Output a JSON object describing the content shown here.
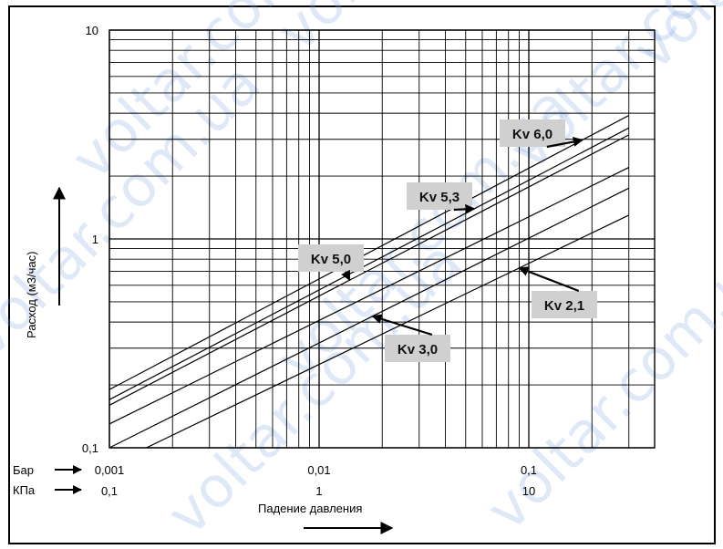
{
  "chart_data": {
    "type": "line",
    "xscale": "log",
    "yscale": "log",
    "xlim": [
      0.001,
      0.3
    ],
    "ylim": [
      0.1,
      10
    ],
    "grid": true,
    "xlabel": "Падение давления",
    "ylabel": "Расход (м3/час)",
    "y_ticks": [
      "10",
      "1",
      "0,1"
    ],
    "x_axes": [
      {
        "unit": "Бар",
        "ticks": [
          "0,001",
          "0,01",
          "0,1"
        ]
      },
      {
        "unit": "КПа",
        "ticks": [
          "0,1",
          "1",
          "10"
        ]
      }
    ],
    "series": [
      {
        "name": "Kv 6,0",
        "x": [
          0.001,
          0.3
        ],
        "y": [
          0.19,
          3.9
        ]
      },
      {
        "name": "Kv 5,3",
        "x": [
          0.001,
          0.3
        ],
        "y": [
          0.17,
          3.4
        ]
      },
      {
        "name": "Kv 5,0",
        "x": [
          0.001,
          0.3
        ],
        "y": [
          0.16,
          3.15
        ]
      },
      {
        "name": "",
        "x": [
          0.001,
          0.3
        ],
        "y": [
          0.13,
          2.2
        ]
      },
      {
        "name": "Kv 3,0",
        "x": [
          0.001,
          0.3
        ],
        "y": [
          0.1,
          1.75
        ]
      },
      {
        "name": "Kv 2,1",
        "x": [
          0.0015,
          0.3
        ],
        "y": [
          0.1,
          1.3
        ]
      }
    ],
    "annotations": [
      {
        "label": "Kv 6,0",
        "series": "Kv 6,0",
        "at_x": 0.18
      },
      {
        "label": "Kv 5,3",
        "series": "Kv 5,3",
        "at_x": 0.055
      },
      {
        "label": "Kv 5,0",
        "series": "Kv 5,0",
        "at_x": 0.014
      },
      {
        "label": "Kv 3,0",
        "series": "Kv 3,0",
        "at_x": 0.018
      },
      {
        "label": "Kv 2,1",
        "series": "Kv 2,1",
        "at_x": 0.09
      }
    ]
  },
  "watermark": "voltar.com.ua"
}
